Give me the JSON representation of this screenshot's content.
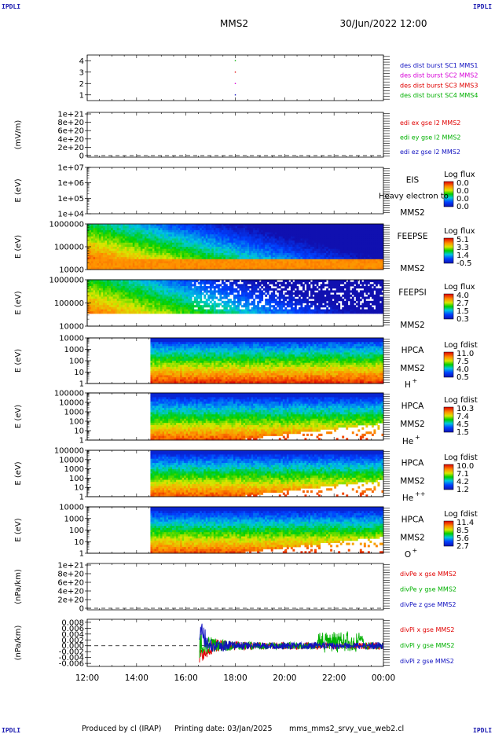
{
  "header": {
    "corner_tl": "IPDLI",
    "corner_tr": "IPDLI",
    "corner_bl": "IPDLI",
    "corner_br": "IPDLI",
    "title": "MMS2",
    "datetime": "30/Jun/2022 12:00"
  },
  "footer": {
    "producer": "Produced by cl (IRAP)",
    "printed": "Printing date: 03/Jan/2025",
    "filename": "mms_mms2_srvy_vue_web2.cl"
  },
  "colors": {
    "mms1": "#1010c0",
    "mms2": "#d800d8",
    "mms3": "#e00000",
    "mms4": "#00b000",
    "x": "#e00000",
    "y": "#00b000",
    "z": "#1010c0"
  },
  "x_axis": {
    "range_hours": [
      12,
      24
    ],
    "ticks": [
      "12:00",
      "14:00",
      "16:00",
      "18:00",
      "20:00",
      "22:00",
      "00:00"
    ]
  },
  "chart_data": [
    {
      "type": "scatter",
      "id": "burst",
      "ylim": [
        0.5,
        4.5
      ],
      "yticks": [
        "1",
        "2",
        "3",
        "4"
      ],
      "series": [
        {
          "name": "des dist burst SC1 MMS1",
          "color": "mms1",
          "points": [
            [
              18.0,
              1
            ]
          ]
        },
        {
          "name": "des dist burst SC2 MMS2",
          "color": "mms2",
          "points": [
            [
              18.0,
              2
            ]
          ]
        },
        {
          "name": "des dist burst SC3 MMS3",
          "color": "mms3",
          "points": [
            [
              18.0,
              3
            ]
          ]
        },
        {
          "name": "des dist burst SC4 MMS4",
          "color": "mms4",
          "points": [
            [
              18.0,
              4
            ]
          ]
        }
      ]
    },
    {
      "type": "line",
      "id": "edi",
      "ylabel": "(mV/m)",
      "yticks": [
        "0",
        "2e+20",
        "4e+20",
        "6e+20",
        "8e+20",
        "1e+21"
      ],
      "ylim": [
        0,
        1e+21
      ],
      "zero_line": true,
      "series": [
        {
          "name": "edi ex gse l2 MMS2",
          "color": "x"
        },
        {
          "name": "edi ey gse l2 MMS2",
          "color": "y"
        },
        {
          "name": "edi ez gse l2 MMS2",
          "color": "z"
        }
      ]
    },
    {
      "type": "heatmap",
      "id": "eis",
      "ylabel": "E (eV)",
      "yticks": [
        "1e+04",
        "1e+05",
        "1e+06",
        "1e+07"
      ],
      "instrument": "EIS",
      "sc": "MMS2",
      "overlay": "Heavy electron to",
      "cbar_title": "Log flux",
      "cbar_ticks": [
        "0.0",
        "0.0",
        "0.0",
        "0.0"
      ],
      "empty": true
    },
    {
      "type": "heatmap",
      "id": "feepse",
      "ylabel": "E (eV)",
      "yticks": [
        "10000",
        "100000",
        "1000000"
      ],
      "instrument": "FEEPSE",
      "sc": "MMS2",
      "cbar_title": "Log flux",
      "cbar_ticks": [
        "5.1",
        "3.3",
        "1.4",
        "-0.5"
      ]
    },
    {
      "type": "heatmap",
      "id": "feepsi",
      "ylabel": "E (eV)",
      "yticks": [
        "10000",
        "100000",
        "1000000"
      ],
      "instrument": "FEEPSI",
      "sc": "MMS2",
      "cbar_title": "Log flux",
      "cbar_ticks": [
        "4.0",
        "2.7",
        "1.5",
        "0.3"
      ]
    },
    {
      "type": "heatmap",
      "id": "hpca_h",
      "ylabel": "E (eV)",
      "yticks": [
        "1",
        "10",
        "100",
        "1000",
        "10000"
      ],
      "instrument": "HPCA",
      "sc": "MMS2",
      "species": "H",
      "charge": "+",
      "cbar_title": "Log fdist",
      "cbar_ticks": [
        "11.0",
        "7.5",
        "4.0",
        "0.5"
      ],
      "start_hour": 14.6
    },
    {
      "type": "heatmap",
      "id": "hpca_he1",
      "ylabel": "E (eV)",
      "yticks": [
        "1",
        "10",
        "100",
        "1000",
        "10000",
        "100000"
      ],
      "instrument": "HPCA",
      "sc": "MMS2",
      "species": "He",
      "charge": "+",
      "cbar_title": "Log fdist",
      "cbar_ticks": [
        "10.3",
        "7.4",
        "4.5",
        "1.5"
      ],
      "start_hour": 14.6
    },
    {
      "type": "heatmap",
      "id": "hpca_he2",
      "ylabel": "E (eV)",
      "yticks": [
        "1",
        "10",
        "100",
        "1000",
        "10000",
        "100000"
      ],
      "instrument": "HPCA",
      "sc": "MMS2",
      "species": "He",
      "charge": "++",
      "cbar_title": "Log fdist",
      "cbar_ticks": [
        "10.0",
        "7.1",
        "4.2",
        "1.2"
      ],
      "start_hour": 14.6
    },
    {
      "type": "heatmap",
      "id": "hpca_o",
      "ylabel": "E (eV)",
      "yticks": [
        "1",
        "10",
        "100",
        "1000",
        "10000"
      ],
      "instrument": "HPCA",
      "sc": "MMS2",
      "species": "O",
      "charge": "+",
      "cbar_title": "Log fdist",
      "cbar_ticks": [
        "11.4",
        "8.5",
        "5.6",
        "2.7"
      ],
      "start_hour": 14.6
    },
    {
      "type": "line",
      "id": "divpe",
      "ylabel": "(nPa/km)",
      "yticks": [
        "0",
        "2e+20",
        "4e+20",
        "6e+20",
        "8e+20",
        "1e+21"
      ],
      "ylim": [
        0,
        1e+21
      ],
      "zero_line": true,
      "series": [
        {
          "name": "divPe x gse MMS2",
          "color": "x"
        },
        {
          "name": "divPe y gse MMS2",
          "color": "y"
        },
        {
          "name": "divPe z gse MMS2",
          "color": "z"
        }
      ]
    },
    {
      "type": "line",
      "id": "divpi",
      "ylabel": "(nPa/km)",
      "yticks": [
        "-0.006",
        "-0.004",
        "-0.002",
        "0.000",
        "0.002",
        "0.004",
        "0.006",
        "0.008"
      ],
      "ylim": [
        -0.0065,
        0.0085
      ],
      "zero_line": true,
      "data_start_hour": 16.55,
      "series": [
        {
          "name": "divPi x gse MMS2",
          "color": "x"
        },
        {
          "name": "divPi y gse MMS2",
          "color": "y"
        },
        {
          "name": "divPi z gse MMS2",
          "color": "z"
        }
      ]
    }
  ]
}
